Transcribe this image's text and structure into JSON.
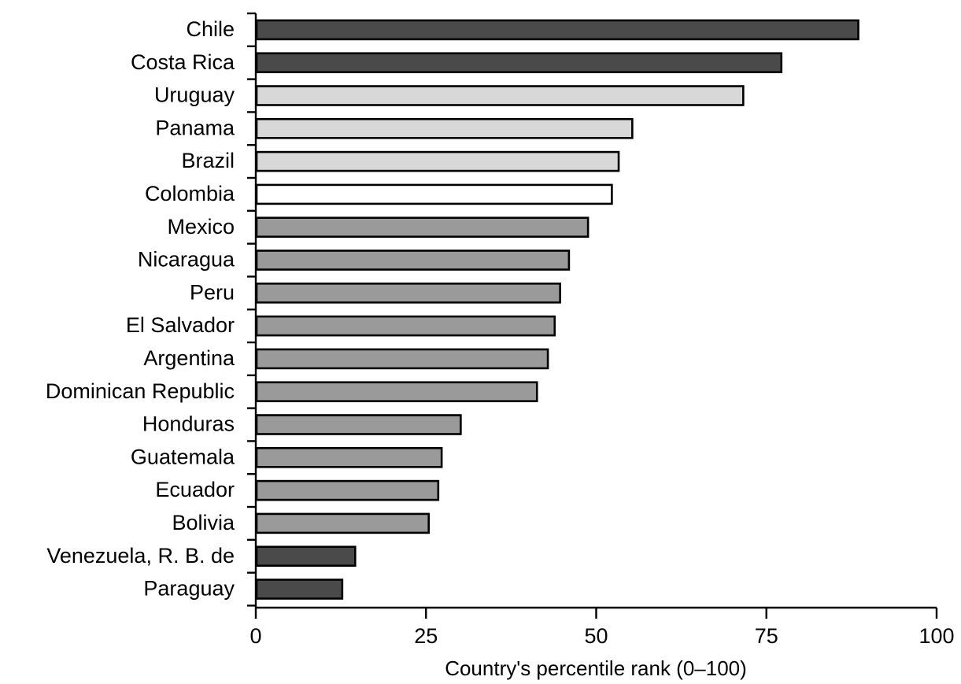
{
  "colors": {
    "dark": "#4a4a4a",
    "light": "#d8d8d8",
    "white": "#ffffff",
    "medium": "#9a9a9a",
    "axis": "#000000"
  },
  "chart_data": {
    "type": "bar",
    "orientation": "horizontal",
    "title": "",
    "xlabel": "Country's percentile rank (0–100)",
    "ylabel": "",
    "xlim": [
      0,
      100
    ],
    "x_ticks": [
      "0",
      "25",
      "50",
      "75",
      "100"
    ],
    "x_tick_values": [
      0,
      25,
      50,
      75,
      100
    ],
    "grid": false,
    "legend": "none",
    "categories": [
      "Chile",
      "Costa Rica",
      "Uruguay",
      "Panama",
      "Brazil",
      "Colombia",
      "Mexico",
      "Nicaragua",
      "Peru",
      "El Salvador",
      "Argentina",
      "Dominican Republic",
      "Honduras",
      "Guatemala",
      "Ecuador",
      "Bolivia",
      "Venezuela, R. B. de",
      "Paraguay"
    ],
    "values": [
      88.5,
      77.2,
      71.6,
      55.3,
      53.3,
      52.3,
      48.8,
      46.0,
      44.7,
      43.9,
      42.9,
      41.3,
      30.1,
      27.3,
      26.8,
      25.4,
      14.6,
      12.7
    ],
    "bar_fill": [
      "dark",
      "dark",
      "light",
      "light",
      "light",
      "white",
      "medium",
      "medium",
      "medium",
      "medium",
      "medium",
      "medium",
      "medium",
      "medium",
      "medium",
      "medium",
      "dark",
      "dark"
    ]
  }
}
